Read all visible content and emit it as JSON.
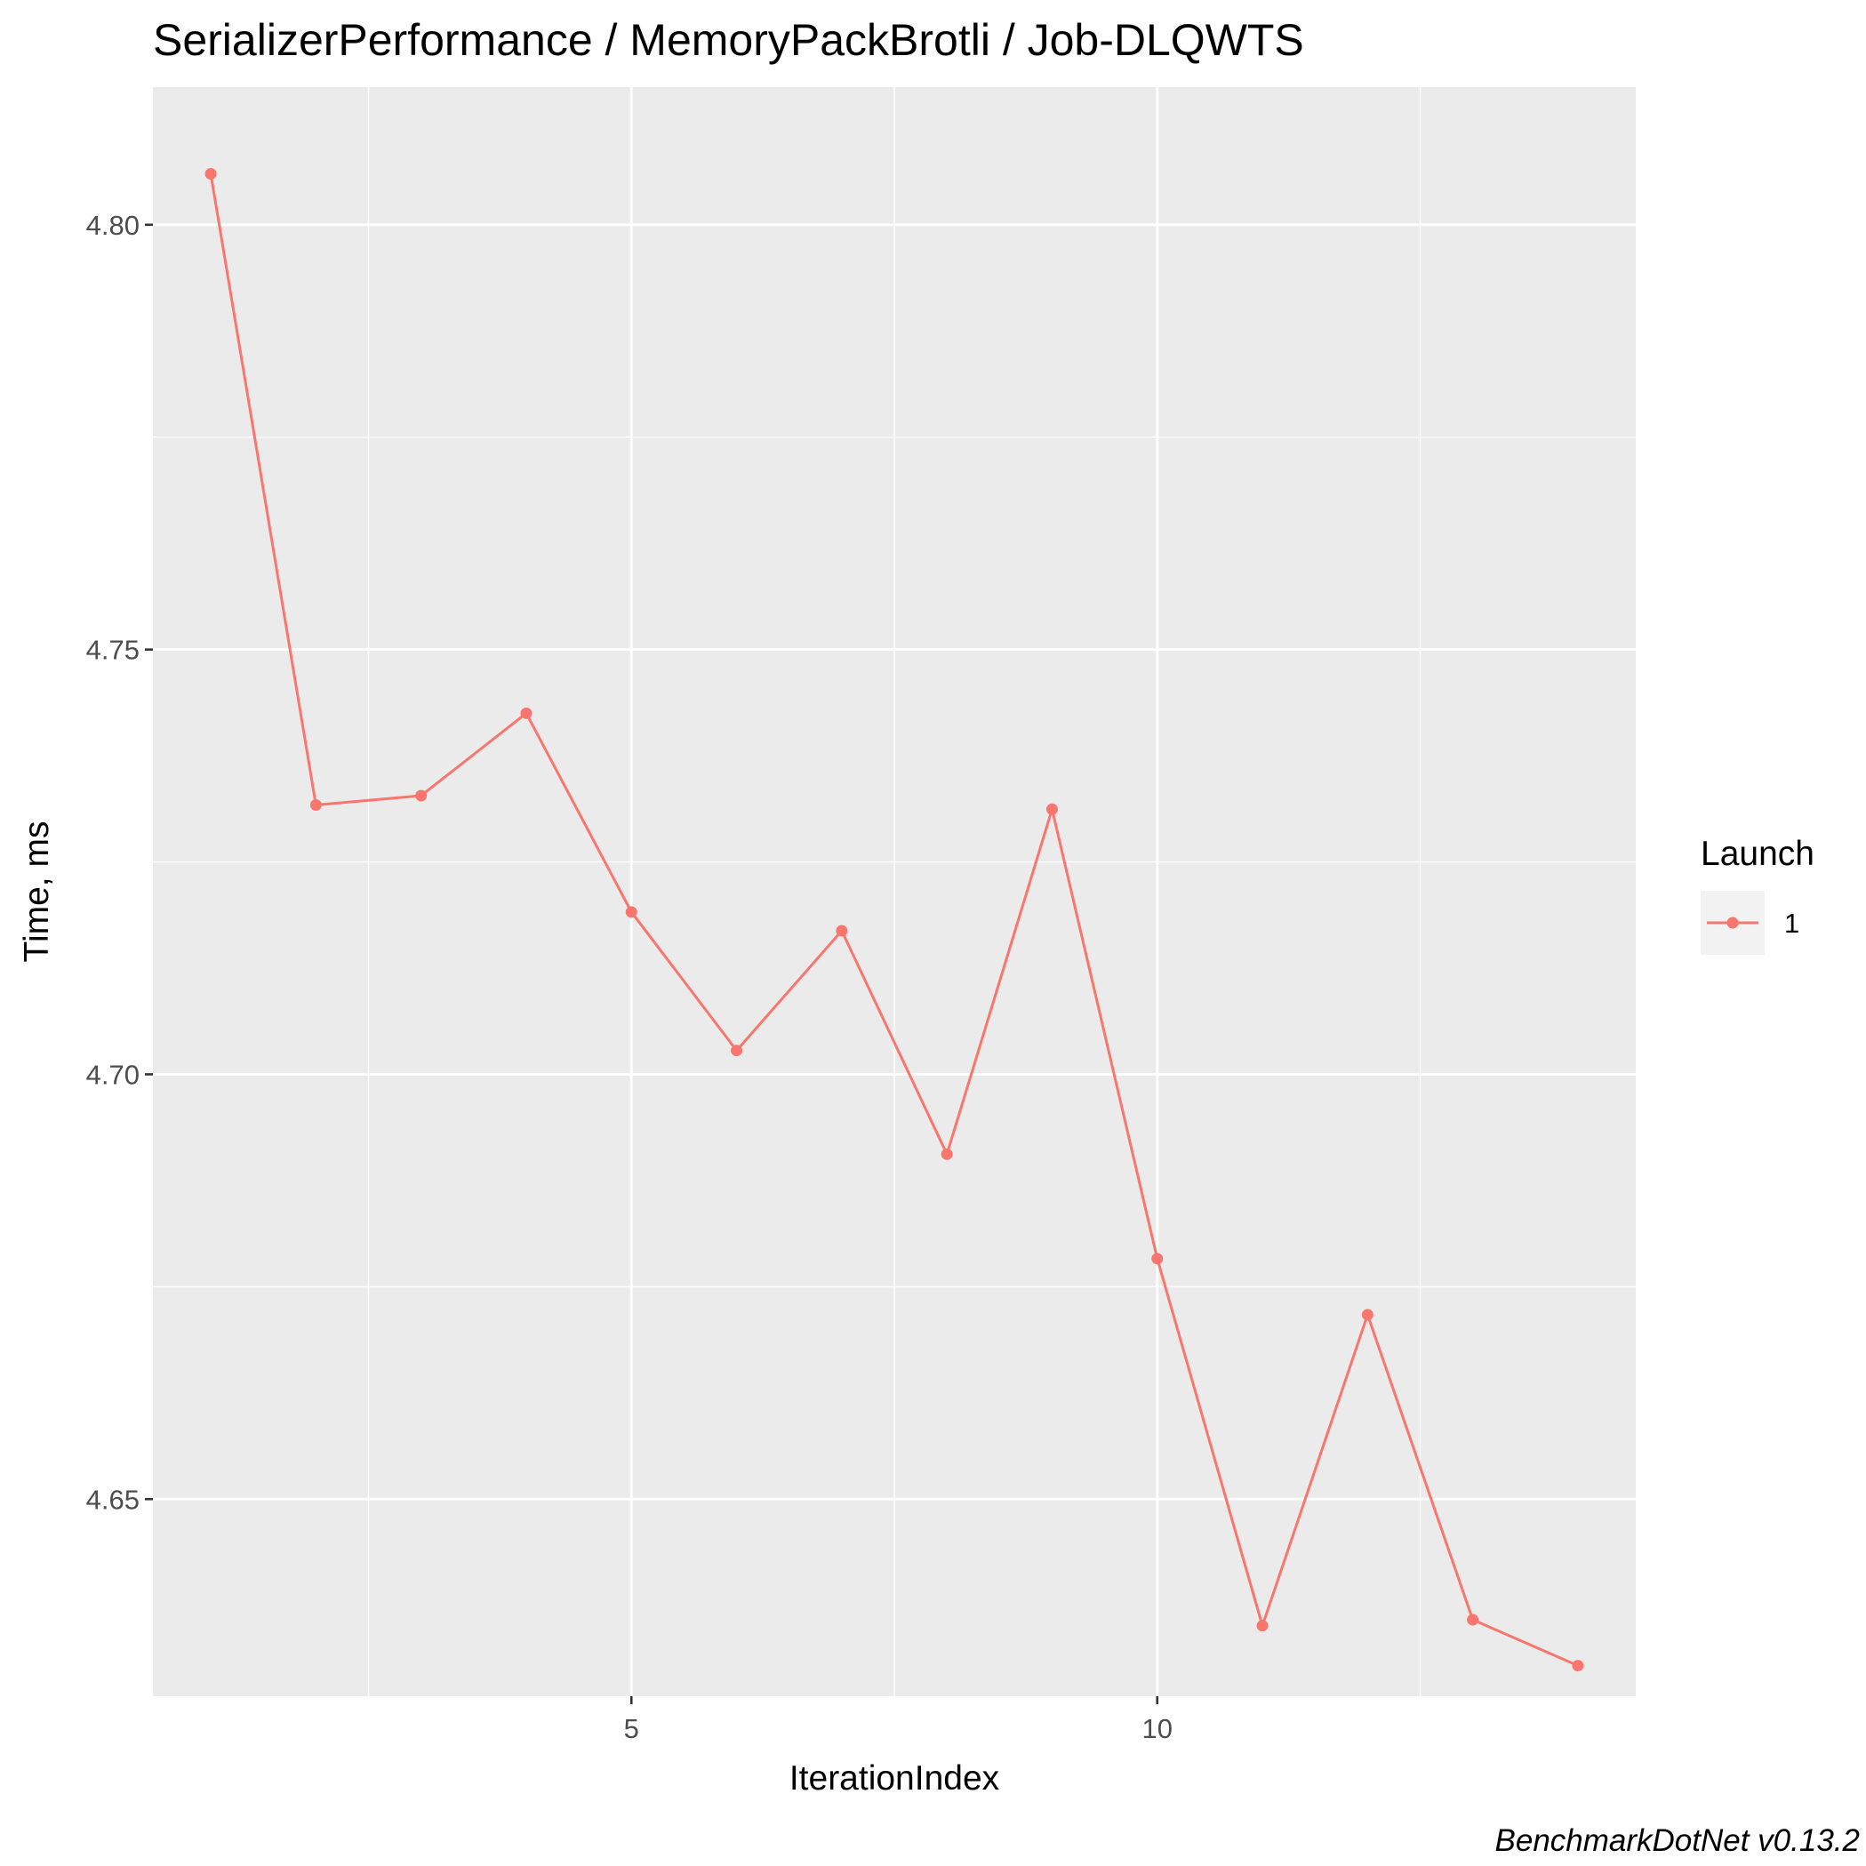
{
  "chart_data": {
    "type": "line",
    "title": "SerializerPerformance / MemoryPackBrotli / Job-DLQWTS",
    "xlabel": "IterationIndex",
    "ylabel": "Time, ms",
    "x": [
      1,
      2,
      3,
      4,
      5,
      6,
      7,
      8,
      9,
      10,
      11,
      12,
      13,
      14
    ],
    "series": [
      {
        "name": "1",
        "color": "#F8766D",
        "values": [
          4.806,
          4.7317,
          4.7328,
          4.7425,
          4.7191,
          4.7028,
          4.7169,
          4.6906,
          4.7312,
          4.6783,
          4.6351,
          4.6717,
          4.6358,
          4.6304
        ]
      }
    ],
    "xlim": [
      0.45,
      14.55
    ],
    "ylim": [
      4.6268,
      4.8162
    ],
    "x_ticks": [
      5,
      10
    ],
    "x_tick_labels": [
      "5",
      "10"
    ],
    "x_minor_ticks": [
      2.5,
      7.5,
      12.5
    ],
    "y_ticks": [
      4.65,
      4.7,
      4.75,
      4.8
    ],
    "y_tick_labels": [
      "4.65",
      "4.70",
      "4.75",
      "4.80"
    ],
    "y_minor_ticks": [
      4.625,
      4.675,
      4.725,
      4.775
    ],
    "grid": true,
    "panel_background": "#EBEBEB",
    "legend": {
      "title": "Launch",
      "position": "right"
    },
    "caption": "BenchmarkDotNet v0.13.2"
  }
}
